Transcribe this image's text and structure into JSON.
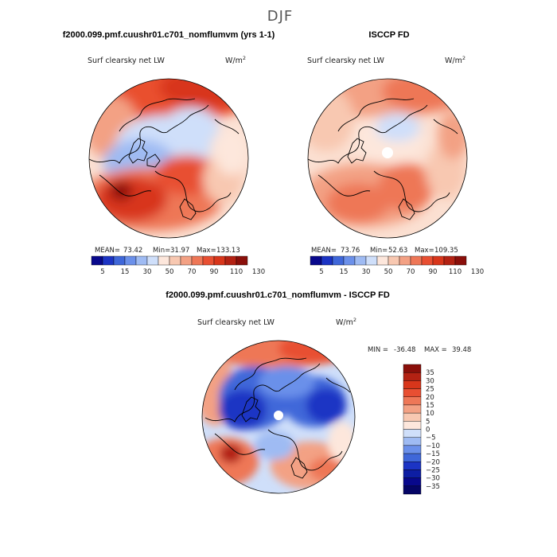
{
  "figure_title": "DJF",
  "chart_data": [
    {
      "type": "heatmap",
      "projection": "polar-stereographic",
      "title": "f2000.099.pmf.cuushr01.c701_nomflumvm (yrs 1-1)",
      "variable": "Surf clearsky net LW",
      "units": "W/m",
      "units_exp": "2",
      "stats": {
        "mean_label": "MEAN=",
        "mean": "73.42",
        "min_label": "Min=",
        "min": "31.97",
        "max_label": "Max=",
        "max": "133.13"
      },
      "colorbar_levels": [
        "5",
        "15",
        "30",
        "50",
        "70",
        "90",
        "110",
        "130"
      ],
      "colorbar_colors": [
        "#08088c",
        "#1c34c4",
        "#3f67d9",
        "#6b90ea",
        "#9fbbf3",
        "#cfdffa",
        "#fde7dc",
        "#f8c8b1",
        "#f3a184",
        "#ee7757",
        "#e84f32",
        "#d8361b",
        "#b32213",
        "#8a0f0a"
      ]
    },
    {
      "type": "heatmap",
      "projection": "polar-stereographic",
      "title": "ISCCP FD",
      "variable": "Surf clearsky net LW",
      "units": "W/m",
      "units_exp": "2",
      "stats": {
        "mean_label": "MEAN=",
        "mean": "73.76",
        "min_label": "Min=",
        "min": "52.63",
        "max_label": "Max=",
        "max": "109.35"
      },
      "colorbar_levels": [
        "5",
        "15",
        "30",
        "50",
        "70",
        "90",
        "110",
        "130"
      ],
      "colorbar_colors": [
        "#08088c",
        "#1c34c4",
        "#3f67d9",
        "#6b90ea",
        "#9fbbf3",
        "#cfdffa",
        "#fde7dc",
        "#f8c8b1",
        "#f3a184",
        "#ee7757",
        "#e84f32",
        "#d8361b",
        "#b32213",
        "#8a0f0a"
      ]
    },
    {
      "type": "heatmap",
      "projection": "polar-stereographic",
      "title": "f2000.099.pmf.cuushr01.c701_nomflumvm - ISCCP FD",
      "variable": "Surf clearsky net LW",
      "units": "W/m",
      "units_exp": "2",
      "stats": {
        "min_label": "MIN =",
        "min": "-36.48",
        "max_label": "MAX =",
        "max": "39.48"
      },
      "colorbar_levels": [
        "35",
        "30",
        "25",
        "20",
        "15",
        "10",
        "5",
        "0",
        "−5",
        "−10",
        "−15",
        "−20",
        "−25",
        "−30",
        "−35"
      ],
      "colorbar_colors": [
        "#8a0f0a",
        "#b32213",
        "#d8361b",
        "#e84f32",
        "#ee7757",
        "#f3a184",
        "#f8c8b1",
        "#fde7dc",
        "#cfdffa",
        "#9fbbf3",
        "#6b90ea",
        "#3f67d9",
        "#1c34c4",
        "#0d1ea3",
        "#08088c",
        "#050566"
      ]
    }
  ]
}
